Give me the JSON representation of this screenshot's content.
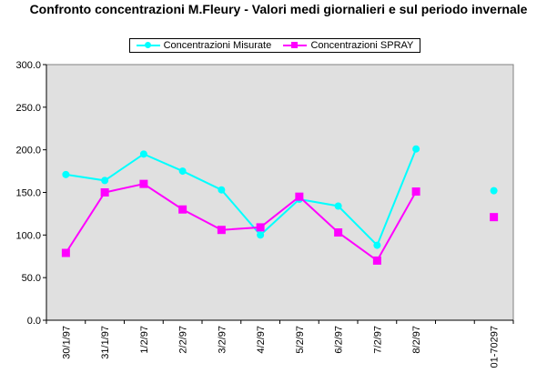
{
  "chart_data": {
    "type": "line",
    "title": "Confronto concentrazioni M.Fleury - Valori medi giornalieri e sul periodo invernale",
    "xlabel": "",
    "ylabel": "",
    "categories": [
      "30/1/97",
      "31/1/97",
      "1/2/97",
      "2/2/97",
      "3/2/97",
      "4/2/97",
      "5/2/97",
      "6/2/97",
      "7/2/97",
      "8/2/97",
      "",
      "01-70297"
    ],
    "ylim": [
      0,
      300
    ],
    "yticks": [
      "0.0",
      "50.0",
      "100.0",
      "150.0",
      "200.0",
      "250.0",
      "300.0"
    ],
    "grid": false,
    "legend_position": "top",
    "plot_background": "#e0e0e0",
    "series": [
      {
        "name": "Concentrazioni Misurate",
        "color": "#00ffff",
        "marker": "circle",
        "values": [
          171,
          164,
          195,
          175,
          153,
          100,
          142,
          134,
          88,
          201,
          null,
          152
        ]
      },
      {
        "name": "Concentrazioni SPRAY",
        "color": "#ff00ff",
        "marker": "square",
        "values": [
          79,
          150,
          160,
          130,
          106,
          109,
          145,
          103,
          70,
          151,
          null,
          121
        ]
      }
    ]
  }
}
